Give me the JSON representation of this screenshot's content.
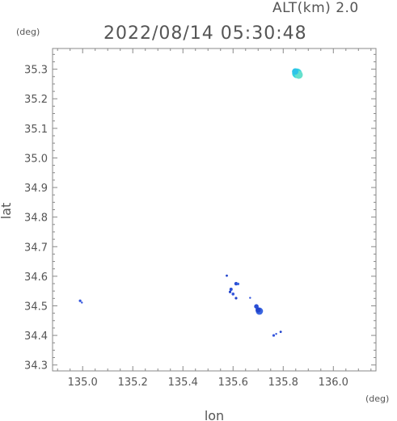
{
  "header": {
    "altitude_label": "ALT(km) 2.0",
    "datetime": "2022/08/14 05:30:48",
    "y_unit": "(deg)",
    "x_unit": "(deg)"
  },
  "chart_data": {
    "type": "scatter",
    "title": "2022/08/14 05:30:48",
    "subtitle": "ALT(km) 2.0",
    "xlabel": "lon",
    "ylabel": "lat",
    "xlim": [
      134.88,
      136.17
    ],
    "ylim": [
      34.28,
      35.37
    ],
    "x_ticks": [
      135.0,
      135.2,
      135.4,
      135.6,
      135.8,
      136.0
    ],
    "x_tick_labels": [
      "135.0",
      "135.2",
      "135.4",
      "135.6",
      "135.8",
      "136.0"
    ],
    "y_ticks": [
      34.3,
      34.4,
      34.5,
      34.6,
      34.7,
      34.8,
      34.9,
      35.0,
      35.1,
      35.2,
      35.3
    ],
    "y_tick_labels": [
      "34.3",
      "34.4",
      "34.5",
      "34.6",
      "34.7",
      "34.8",
      "34.9",
      "35.0",
      "35.1",
      "35.2",
      "35.3"
    ],
    "grid": false,
    "points": [
      {
        "x": 135.855,
        "y": 35.286,
        "size": 6,
        "color": "#33d6e0"
      },
      {
        "x": 135.862,
        "y": 35.281,
        "size": 5,
        "color": "#66e0cc"
      },
      {
        "x": 135.848,
        "y": 35.292,
        "size": 4,
        "color": "#2ec4e8"
      },
      {
        "x": 134.99,
        "y": 34.517,
        "size": 1.6,
        "color": "#3355dd"
      },
      {
        "x": 134.997,
        "y": 34.511,
        "size": 1.2,
        "color": "#3355dd"
      },
      {
        "x": 135.575,
        "y": 34.602,
        "size": 1.4,
        "color": "#2244cc"
      },
      {
        "x": 135.612,
        "y": 34.575,
        "size": 2.2,
        "color": "#2a4fd6"
      },
      {
        "x": 135.62,
        "y": 34.574,
        "size": 1.6,
        "color": "#3a66e0"
      },
      {
        "x": 135.592,
        "y": 34.556,
        "size": 2.0,
        "color": "#2a4fd6"
      },
      {
        "x": 135.588,
        "y": 34.547,
        "size": 1.6,
        "color": "#2244cc"
      },
      {
        "x": 135.6,
        "y": 34.54,
        "size": 1.8,
        "color": "#3355dd"
      },
      {
        "x": 135.612,
        "y": 34.526,
        "size": 1.6,
        "color": "#2244cc"
      },
      {
        "x": 135.668,
        "y": 34.527,
        "size": 1.2,
        "color": "#3355dd"
      },
      {
        "x": 135.693,
        "y": 34.498,
        "size": 2.8,
        "color": "#2a4fd6"
      },
      {
        "x": 135.705,
        "y": 34.482,
        "size": 4.5,
        "color": "#3a66e0"
      },
      {
        "x": 135.7,
        "y": 34.486,
        "size": 3.2,
        "color": "#2244cc"
      },
      {
        "x": 135.762,
        "y": 34.4,
        "size": 1.6,
        "color": "#3355dd"
      },
      {
        "x": 135.772,
        "y": 34.405,
        "size": 1.2,
        "color": "#3355dd"
      },
      {
        "x": 135.79,
        "y": 34.412,
        "size": 1.4,
        "color": "#2244cc"
      }
    ],
    "colors": {
      "axis": "#888888",
      "text": "#555555"
    }
  }
}
